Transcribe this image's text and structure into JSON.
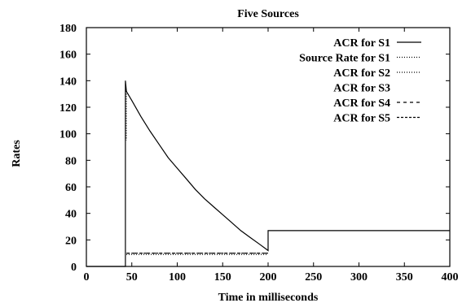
{
  "chart_data": {
    "type": "line",
    "title": "Five Sources",
    "xlabel": "Time in milliseconds",
    "ylabel": "Rates",
    "xlim": [
      0,
      400
    ],
    "ylim": [
      0,
      180
    ],
    "xticks": [
      0,
      50,
      100,
      150,
      200,
      250,
      300,
      350,
      400
    ],
    "yticks": [
      0,
      20,
      40,
      60,
      80,
      100,
      120,
      140,
      160,
      180
    ],
    "grid": false,
    "legend_position": "top-right",
    "series": [
      {
        "name": "ACR for S1",
        "dash": "solid",
        "points": [
          [
            0,
            0
          ],
          [
            43,
            0
          ],
          [
            43,
            140
          ],
          [
            44,
            132
          ],
          [
            50,
            125
          ],
          [
            60,
            113
          ],
          [
            70,
            102
          ],
          [
            80,
            92
          ],
          [
            90,
            82
          ],
          [
            100,
            74
          ],
          [
            110,
            66
          ],
          [
            120,
            58
          ],
          [
            130,
            51
          ],
          [
            140,
            45
          ],
          [
            150,
            39
          ],
          [
            160,
            33
          ],
          [
            170,
            27
          ],
          [
            180,
            22
          ],
          [
            190,
            17
          ],
          [
            200,
            12
          ],
          [
            200,
            27
          ],
          [
            400,
            27
          ]
        ]
      },
      {
        "name": "Source Rate for S1",
        "dash": "dotted",
        "points": [
          [
            44,
            132
          ],
          [
            44,
            95
          ]
        ]
      },
      {
        "name": "ACR for S2",
        "dash": "dotted",
        "points": [
          [
            44,
            9
          ],
          [
            200,
            9
          ]
        ]
      },
      {
        "name": "ACR for S3",
        "dash": "none",
        "points": []
      },
      {
        "name": "ACR for S4",
        "dash": "dashed",
        "points": [
          [
            44,
            10
          ],
          [
            200,
            10
          ]
        ]
      },
      {
        "name": "ACR for S5",
        "dash": "dense-dashed",
        "points": [
          [
            45,
            10
          ],
          [
            200,
            10
          ]
        ]
      }
    ]
  }
}
